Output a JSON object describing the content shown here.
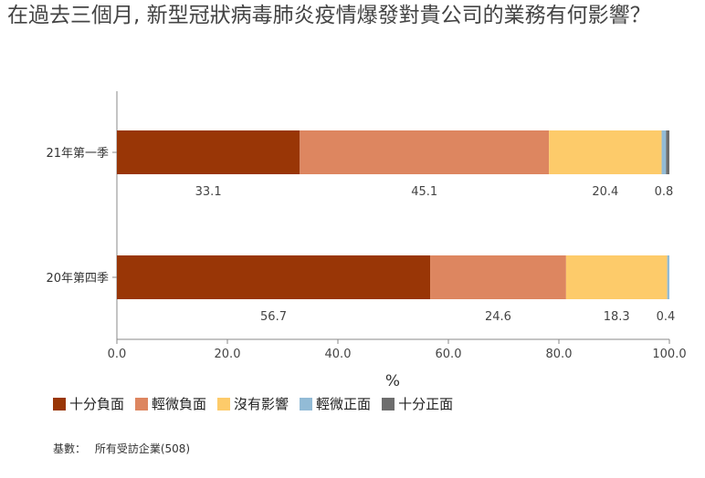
{
  "title": "在過去三個月, 新型冠狀病毒肺炎疫情爆發對貴公司的業務有何影響？",
  "base_label": "基數：",
  "base_value": "所有受訪企業(508)",
  "colors": {
    "十分負面": "#993606",
    "輕微負面": "#dd8660",
    "沒有影響": "#fdcb6a",
    "輕微正面": "#92bbd6",
    "十分正面": "#6d6d6d"
  },
  "chart_data": {
    "type": "bar",
    "orientation": "horizontal",
    "stacked": true,
    "categories": [
      "21年第一季",
      "20年第四季"
    ],
    "series": [
      {
        "name": "十分負面",
        "values": [
          33.1,
          56.7
        ]
      },
      {
        "name": "輕微負面",
        "values": [
          45.1,
          24.6
        ]
      },
      {
        "name": "沒有影響",
        "values": [
          20.4,
          18.3
        ]
      },
      {
        "name": "輕微正面",
        "values": [
          0.8,
          0.4
        ]
      },
      {
        "name": "十分正面",
        "values": [
          0.6,
          0.0
        ]
      }
    ],
    "data_labels": [
      [
        "33.1",
        "45.1",
        "20.4",
        "0.8"
      ],
      [
        "56.7",
        "24.6",
        "18.3",
        "0.4"
      ]
    ],
    "xlabel": "%",
    "xlim": [
      0,
      100
    ],
    "xticks": [
      "0.0",
      "20.0",
      "40.0",
      "60.0",
      "80.0",
      "100.0"
    ],
    "legend_position": "bottom-left",
    "grid": false
  }
}
